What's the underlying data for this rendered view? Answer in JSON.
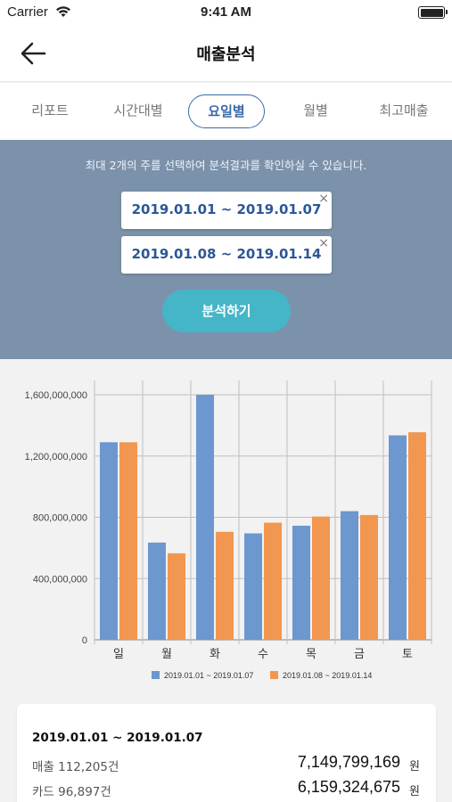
{
  "status": {
    "carrier": "Carrier",
    "time": "9:41 AM"
  },
  "nav": {
    "title": "매출분석"
  },
  "tabs": [
    {
      "label": "리포트",
      "active": false
    },
    {
      "label": "시간대별",
      "active": false
    },
    {
      "label": "요일별",
      "active": true
    },
    {
      "label": "월별",
      "active": false
    },
    {
      "label": "최고매출",
      "active": false
    }
  ],
  "filter": {
    "notice": "최대 2개의 주를 선택하여 분석결과를 확인하실 수 있습니다.",
    "ranges": [
      "2019.01.01 ~ 2019.01.07",
      "2019.01.08 ~ 2019.01.14"
    ],
    "clear_label": "×",
    "analyze_label": "분석하기"
  },
  "chart_data": {
    "type": "bar",
    "categories": [
      "일",
      "월",
      "화",
      "수",
      "목",
      "금",
      "토"
    ],
    "series": [
      {
        "name": "2019.01.01 ~ 2019.01.07",
        "color": "#6d97cf",
        "values": [
          1290000000,
          635000000,
          1600000000,
          695000000,
          745000000,
          840000000,
          1335000000
        ]
      },
      {
        "name": "2019.01.08 ~ 2019.01.14",
        "color": "#f2974f",
        "values": [
          1290000000,
          565000000,
          705000000,
          765000000,
          805000000,
          815000000,
          1355000000
        ]
      }
    ],
    "y_ticks": [
      "0",
      "400,000,000",
      "800,000,000",
      "1,200,000,000",
      "1,600,000,000"
    ],
    "ylim": [
      0,
      1600000000
    ],
    "grid": true,
    "legend": "bottom"
  },
  "summary": {
    "range": "2019.01.01 ~ 2019.01.07",
    "rows": [
      {
        "label": "매출 112,205건",
        "value": "7,149,799,169",
        "unit": "원"
      },
      {
        "label": "카드 96,897건",
        "value": "6,159,324,675",
        "unit": "원"
      }
    ]
  }
}
